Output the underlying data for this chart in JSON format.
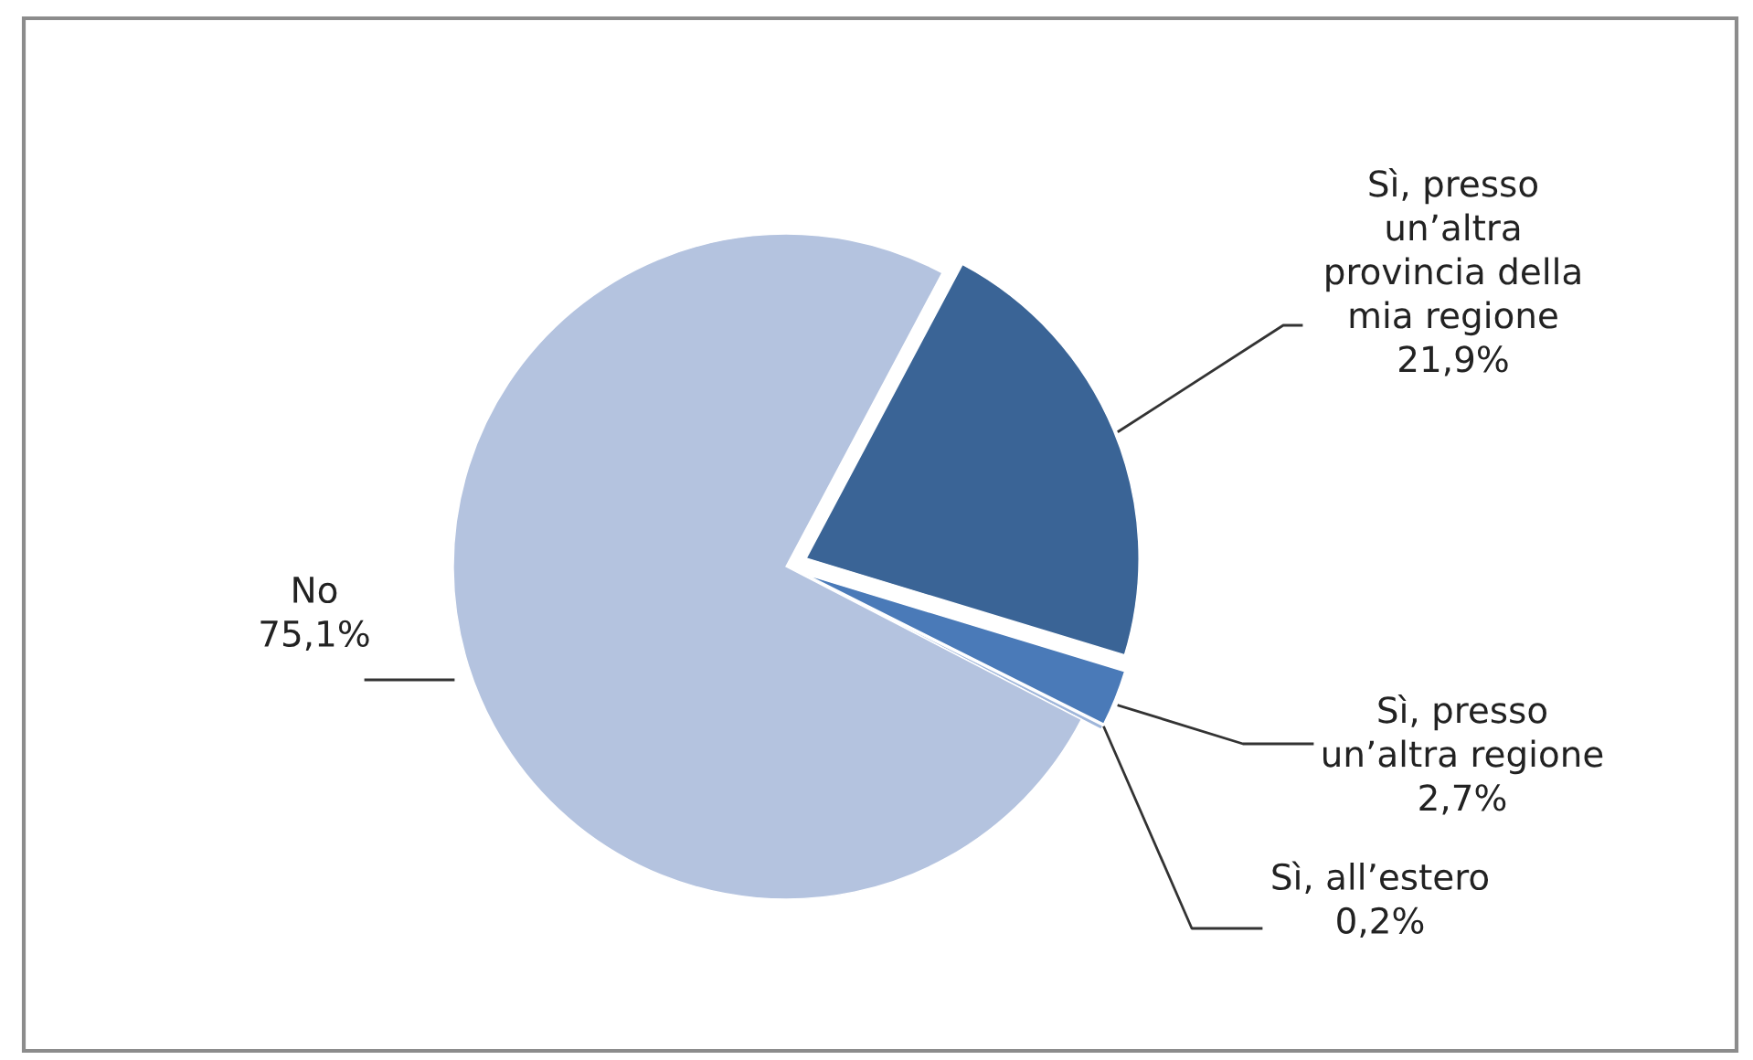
{
  "chart_data": {
    "type": "pie",
    "categories": [
      "Sì, presso\nun’altra\nprovincia della\nmia regione",
      "Sì, presso\nun’altra regione",
      "Sì, all’estero",
      "No"
    ],
    "values": [
      21.9,
      2.7,
      0.2,
      75.1
    ],
    "value_labels": [
      "21,9%",
      "2,7%",
      "0,2%",
      "75,1%"
    ],
    "colors": [
      "#3a6496",
      "#4a7ab8",
      "#9fb6da",
      "#b4c3df"
    ],
    "legend": false
  }
}
